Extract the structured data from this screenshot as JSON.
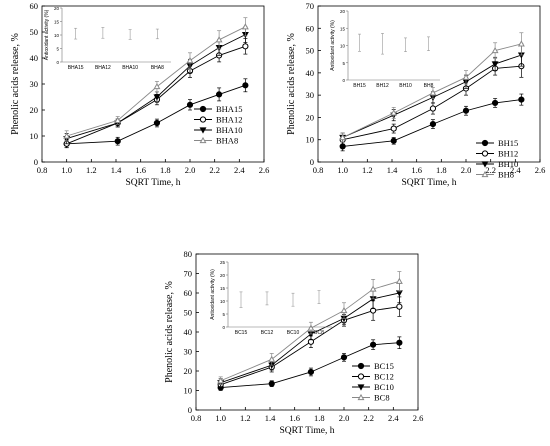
{
  "chart_data": [
    {
      "type": "line",
      "xlabel": "SQRT Time, h",
      "ylabel": "Phenolic acids release, %",
      "xlim": [
        0.8,
        2.6
      ],
      "ylim": [
        0,
        60
      ],
      "xticks": [
        "0.8",
        "1.0",
        "1.2",
        "1.4",
        "1.6",
        "1.8",
        "2.0",
        "2.2",
        "2.4",
        "2.6"
      ],
      "yticks": [
        "0",
        "10",
        "20",
        "30",
        "40",
        "50",
        "60"
      ],
      "legend_position": "bottom-right",
      "x": [
        1.0,
        1.414,
        1.732,
        2.0,
        2.236,
        2.449
      ],
      "series": [
        {
          "name": "BHA15",
          "marker": "filled-circle",
          "color": "#000000",
          "values": [
            7,
            8,
            15,
            22,
            26,
            29.5
          ],
          "errors": [
            1.5,
            1.5,
            1.5,
            2,
            2.5,
            2.5
          ]
        },
        {
          "name": "BHA12",
          "marker": "open-circle",
          "color": "#000000",
          "values": [
            7,
            15,
            24,
            35,
            41,
            44.5
          ],
          "errors": [
            1.5,
            1.5,
            2,
            2.5,
            2.5,
            3
          ]
        },
        {
          "name": "BHA10",
          "marker": "filled-triangle-down",
          "color": "#000000",
          "values": [
            9,
            15,
            25,
            37,
            44,
            49
          ],
          "errors": [
            2,
            1.5,
            2,
            2.5,
            3,
            3
          ]
        },
        {
          "name": "BHA8",
          "marker": "open-triangle-up",
          "color": "#888888",
          "values": [
            10,
            16,
            29,
            39,
            47,
            52
          ],
          "errors": [
            2,
            1.5,
            2,
            3,
            3.5,
            3.5
          ]
        }
      ],
      "inset": {
        "ylabel": "Antioxidant activity (%)",
        "ylim": [
          0,
          20
        ],
        "yticks": [
          "0",
          "5",
          "10",
          "15",
          "20"
        ],
        "categories": [
          "BHA15",
          "BHA12",
          "BHA10",
          "BHA8"
        ],
        "values": [
          10.5,
          10.8,
          10.2,
          10.4
        ],
        "errors": [
          2,
          2,
          1.8,
          1.8
        ]
      }
    },
    {
      "type": "line",
      "xlabel": "SQRT Time, h",
      "ylabel": "Phenolic acids release, %",
      "xlim": [
        0.8,
        2.6
      ],
      "ylim": [
        0,
        70
      ],
      "xticks": [
        "0.8",
        "1.0",
        "1.2",
        "1.4",
        "1.6",
        "1.8",
        "2.0",
        "2.2",
        "2.4",
        "2.6"
      ],
      "yticks": [
        "0",
        "10",
        "20",
        "30",
        "40",
        "50",
        "60",
        "70"
      ],
      "legend_position": "bottom-right",
      "x": [
        1.0,
        1.414,
        1.732,
        2.0,
        2.236,
        2.449
      ],
      "series": [
        {
          "name": "BH15",
          "marker": "filled-circle",
          "color": "#000000",
          "values": [
            7,
            9.5,
            17,
            23,
            26.5,
            28
          ],
          "errors": [
            2,
            1.5,
            2,
            2,
            2,
            2.5
          ]
        },
        {
          "name": "BH12",
          "marker": "open-circle",
          "color": "#000000",
          "values": [
            10,
            15,
            24,
            33,
            42,
            43
          ],
          "errors": [
            2,
            2,
            2.5,
            3,
            3,
            5
          ]
        },
        {
          "name": "BH10",
          "marker": "filled-triangle-down",
          "color": "#000000",
          "values": [
            11,
            21,
            29,
            36,
            44,
            48
          ],
          "errors": [
            2,
            2.5,
            2.5,
            3,
            3,
            5
          ]
        },
        {
          "name": "BH8",
          "marker": "open-triangle-up",
          "color": "#888888",
          "values": [
            11,
            22,
            31,
            38,
            50,
            53
          ],
          "errors": [
            2,
            2.5,
            2.5,
            3,
            3.5,
            5
          ]
        }
      ],
      "inset": {
        "ylabel": "Antioxidant activity (%)",
        "ylim": [
          0,
          20
        ],
        "yticks": [
          "0",
          "5",
          "10",
          "15",
          "20"
        ],
        "categories": [
          "BH15",
          "BH12",
          "BH10",
          "BH8"
        ],
        "values": [
          10.8,
          10.5,
          10.2,
          10.5
        ],
        "errors": [
          2.5,
          3,
          2,
          2
        ]
      }
    },
    {
      "type": "line",
      "xlabel": "SQRT Time, h",
      "ylabel": "Phenolic acids release, %",
      "xlim": [
        0.8,
        2.6
      ],
      "ylim": [
        0,
        80
      ],
      "xticks": [
        "0.8",
        "1.0",
        "1.2",
        "1.4",
        "1.6",
        "1.8",
        "2.0",
        "2.2",
        "2.4",
        "2.6"
      ],
      "yticks": [
        "0",
        "10",
        "20",
        "30",
        "40",
        "50",
        "60",
        "70",
        "80"
      ],
      "legend_position": "bottom-right",
      "x": [
        1.0,
        1.414,
        1.732,
        2.0,
        2.236,
        2.449
      ],
      "series": [
        {
          "name": "BC15",
          "marker": "filled-circle",
          "color": "#000000",
          "values": [
            11.5,
            13.5,
            19.5,
            27,
            33.5,
            34.5
          ],
          "errors": [
            1.5,
            1.5,
            2,
            2,
            2.5,
            3
          ]
        },
        {
          "name": "BC12",
          "marker": "open-circle",
          "color": "#000000",
          "values": [
            13,
            22,
            35,
            46,
            51,
            53
          ],
          "errors": [
            2,
            2.5,
            3,
            3,
            5,
            5
          ]
        },
        {
          "name": "BC10",
          "marker": "filled-triangle-down",
          "color": "#000000",
          "values": [
            14,
            23,
            39,
            47,
            57,
            60
          ],
          "errors": [
            2,
            2.5,
            3,
            3,
            5,
            5
          ]
        },
        {
          "name": "BC8",
          "marker": "open-triangle-up",
          "color": "#888888",
          "values": [
            15,
            26,
            42,
            51,
            62,
            66
          ],
          "errors": [
            2,
            3,
            3,
            4,
            5,
            5
          ]
        }
      ],
      "inset": {
        "ylabel": "Antioxidant activity (%)",
        "ylim": [
          0,
          25
        ],
        "yticks": [
          "0",
          "5",
          "10",
          "15",
          "20",
          "25"
        ],
        "categories": [
          "BC15",
          "BC12",
          "BC10",
          "BC8"
        ],
        "values": [
          10.5,
          11,
          10.5,
          11.5
        ],
        "errors": [
          3,
          2.5,
          2.5,
          2.5
        ]
      }
    }
  ]
}
